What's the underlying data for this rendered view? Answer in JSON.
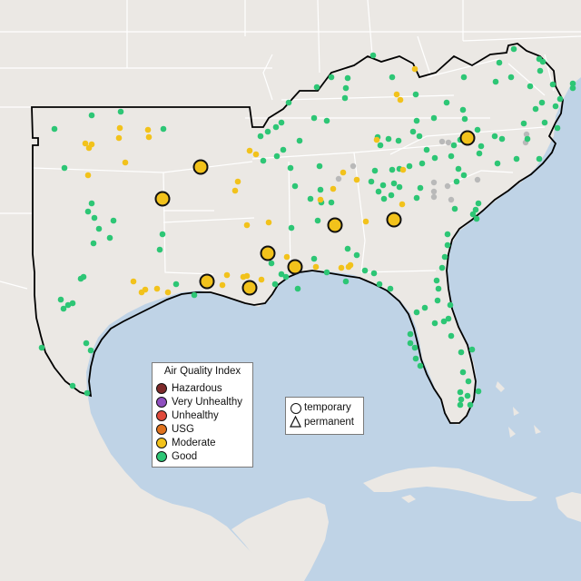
{
  "legend": {
    "title": "Air Quality Index",
    "categories": [
      {
        "label": "Hazardous",
        "color": "#7e2a2a"
      },
      {
        "label": "Very Unhealthy",
        "color": "#8f4fbf"
      },
      {
        "label": "Unhealthy",
        "color": "#e04a3c"
      },
      {
        "label": "USG",
        "color": "#e0731e"
      },
      {
        "label": "Moderate",
        "color": "#f2c21b"
      },
      {
        "label": "Good",
        "color": "#2dc675"
      }
    ]
  },
  "site_legend": {
    "temporary": "temporary",
    "permanent": "permanent"
  },
  "colors": {
    "water": "#bfd3e6",
    "land": "#ebe8e4",
    "state_border": "#ffffff",
    "region_outline": "#000000",
    "good": "#2dc675",
    "moderate": "#f2c21b",
    "no_data": "#b9b9b9"
  },
  "sites": {
    "good": [
      [
        60,
        142
      ],
      [
        101,
        127
      ],
      [
        133,
        123
      ],
      [
        71,
        185
      ],
      [
        180,
        142
      ],
      [
        101,
        224
      ],
      [
        104,
        240
      ],
      [
        97,
        233
      ],
      [
        109,
        252
      ],
      [
        125,
        243
      ],
      [
        121,
        262
      ],
      [
        103,
        268
      ],
      [
        92,
        305
      ],
      [
        89,
        307
      ],
      [
        67,
        330
      ],
      [
        75,
        336
      ],
      [
        70,
        340
      ],
      [
        80,
        334
      ],
      [
        46,
        383
      ],
      [
        95,
        378
      ],
      [
        100,
        386
      ],
      [
        80,
        425
      ],
      [
        96,
        433
      ],
      [
        179,
        258
      ],
      [
        176,
        275
      ],
      [
        194,
        313
      ],
      [
        214,
        325
      ],
      [
        231,
        313
      ],
      [
        310,
        302
      ],
      [
        299,
        290
      ],
      [
        315,
        305
      ],
      [
        303,
        313
      ],
      [
        328,
        318
      ],
      [
        381,
        310
      ],
      [
        418,
        313
      ],
      [
        430,
        318
      ],
      [
        402,
        298
      ],
      [
        412,
        301
      ],
      [
        393,
        281
      ],
      [
        360,
        300
      ],
      [
        346,
        285
      ],
      [
        321,
        251
      ],
      [
        350,
        243
      ],
      [
        354,
        223
      ],
      [
        342,
        219
      ],
      [
        353,
        209
      ],
      [
        352,
        183
      ],
      [
        325,
        205
      ],
      [
        320,
        185
      ],
      [
        305,
        172
      ],
      [
        290,
        177
      ],
      [
        287,
        150
      ],
      [
        295,
        145
      ],
      [
        312,
        165
      ],
      [
        330,
        155
      ],
      [
        346,
        130
      ],
      [
        360,
        133
      ],
      [
        380,
        108
      ],
      [
        349,
        96
      ],
      [
        365,
        85
      ],
      [
        383,
        86
      ],
      [
        381,
        97
      ],
      [
        411,
        61
      ],
      [
        432,
        85
      ],
      [
        458,
        104
      ],
      [
        462,
        150
      ],
      [
        470,
        165
      ],
      [
        479,
        174
      ],
      [
        465,
        180
      ],
      [
        451,
        183
      ],
      [
        440,
        186
      ],
      [
        432,
        187
      ],
      [
        413,
        188
      ],
      [
        409,
        200
      ],
      [
        417,
        211
      ],
      [
        423,
        219
      ],
      [
        431,
        215
      ],
      [
        422,
        204
      ],
      [
        434,
        202
      ],
      [
        440,
        206
      ],
      [
        416,
        151
      ],
      [
        419,
        160
      ],
      [
        428,
        153
      ],
      [
        439,
        155
      ],
      [
        455,
        145
      ],
      [
        459,
        133
      ],
      [
        478,
        130
      ],
      [
        492,
        113
      ],
      [
        512,
        131
      ],
      [
        510,
        121
      ],
      [
        513,
        148
      ],
      [
        526,
        143
      ],
      [
        545,
        150
      ],
      [
        553,
        153
      ],
      [
        577,
        136
      ],
      [
        581,
        153
      ],
      [
        594,
        175
      ],
      [
        569,
        175
      ],
      [
        548,
        180
      ],
      [
        530,
        161
      ],
      [
        528,
        169
      ],
      [
        507,
        154
      ],
      [
        500,
        160
      ],
      [
        497,
        172
      ],
      [
        505,
        186
      ],
      [
        511,
        193
      ],
      [
        503,
        200
      ],
      [
        463,
        207
      ],
      [
        459,
        218
      ],
      [
        501,
        230
      ],
      [
        521,
        236
      ],
      [
        524,
        231
      ],
      [
        525,
        241
      ],
      [
        527,
        224
      ],
      [
        493,
        258
      ],
      [
        493,
        270
      ],
      [
        490,
        283
      ],
      [
        487,
        295
      ],
      [
        481,
        309
      ],
      [
        483,
        318
      ],
      [
        482,
        331
      ],
      [
        496,
        336
      ],
      [
        494,
        351
      ],
      [
        468,
        339
      ],
      [
        459,
        344
      ],
      [
        452,
        368
      ],
      [
        452,
        378
      ],
      [
        457,
        383
      ],
      [
        458,
        395
      ],
      [
        463,
        403
      ],
      [
        479,
        356
      ],
      [
        489,
        354
      ],
      [
        497,
        370
      ],
      [
        508,
        388
      ],
      [
        520,
        385
      ],
      [
        510,
        410
      ],
      [
        516,
        420
      ],
      [
        507,
        432
      ],
      [
        515,
        436
      ],
      [
        507,
        446
      ],
      [
        518,
        446
      ],
      [
        527,
        431
      ],
      [
        508,
        440
      ],
      [
        511,
        85
      ],
      [
        546,
        90
      ],
      [
        563,
        85
      ],
      [
        566,
        54
      ],
      [
        550,
        69
      ],
      [
        594,
        65
      ],
      [
        595,
        78
      ],
      [
        598,
        68
      ],
      [
        584,
        95
      ],
      [
        609,
        93
      ],
      [
        612,
        117
      ],
      [
        617,
        109
      ],
      [
        631,
        97
      ],
      [
        631,
        92
      ],
      [
        597,
        113
      ],
      [
        590,
        120
      ],
      [
        600,
        135
      ],
      [
        614,
        141
      ],
      [
        365,
        223
      ],
      [
        383,
        274
      ],
      [
        318,
        113
      ],
      [
        304,
        140
      ],
      [
        310,
        135
      ]
    ],
    "moderate": [
      [
        101,
        159
      ],
      [
        98,
        163
      ],
      [
        94,
        158
      ],
      [
        132,
        141
      ],
      [
        131,
        152
      ],
      [
        163,
        143
      ],
      [
        164,
        151
      ],
      [
        97,
        193
      ],
      [
        138,
        179
      ],
      [
        147,
        310
      ],
      [
        156,
        322
      ],
      [
        173,
        318
      ],
      [
        185,
        322
      ],
      [
        250,
        303
      ],
      [
        268,
        305
      ],
      [
        275,
        166
      ],
      [
        282,
        170
      ],
      [
        262,
        200
      ],
      [
        259,
        210
      ],
      [
        272,
        248
      ],
      [
        296,
        245
      ],
      [
        272,
        304
      ],
      [
        288,
        308
      ],
      [
        367,
        208
      ],
      [
        353,
        220
      ],
      [
        378,
        190
      ],
      [
        393,
        198
      ],
      [
        403,
        244
      ],
      [
        415,
        154
      ],
      [
        437,
        104
      ],
      [
        441,
        110
      ],
      [
        457,
        76
      ],
      [
        444,
        187
      ],
      [
        443,
        225
      ],
      [
        376,
        295
      ],
      [
        386,
        292
      ],
      [
        384,
        294
      ],
      [
        316,
        283
      ],
      [
        348,
        294
      ],
      [
        160,
        319
      ],
      [
        245,
        314
      ]
    ],
    "moderate_large": [
      [
        221,
        184
      ],
      [
        179,
        219
      ],
      [
        295,
        279
      ],
      [
        228,
        310
      ],
      [
        275,
        317
      ],
      [
        325,
        294
      ],
      [
        369,
        248
      ],
      [
        434,
        242
      ],
      [
        515,
        152
      ]
    ],
    "no_data": [
      [
        487,
        156
      ],
      [
        494,
        157
      ],
      [
        580,
        148
      ],
      [
        579,
        157
      ],
      [
        389,
        183
      ],
      [
        373,
        197
      ],
      [
        478,
        201
      ],
      [
        493,
        205
      ],
      [
        478,
        211
      ],
      [
        478,
        217
      ],
      [
        497,
        220
      ],
      [
        526,
        198
      ]
    ]
  }
}
